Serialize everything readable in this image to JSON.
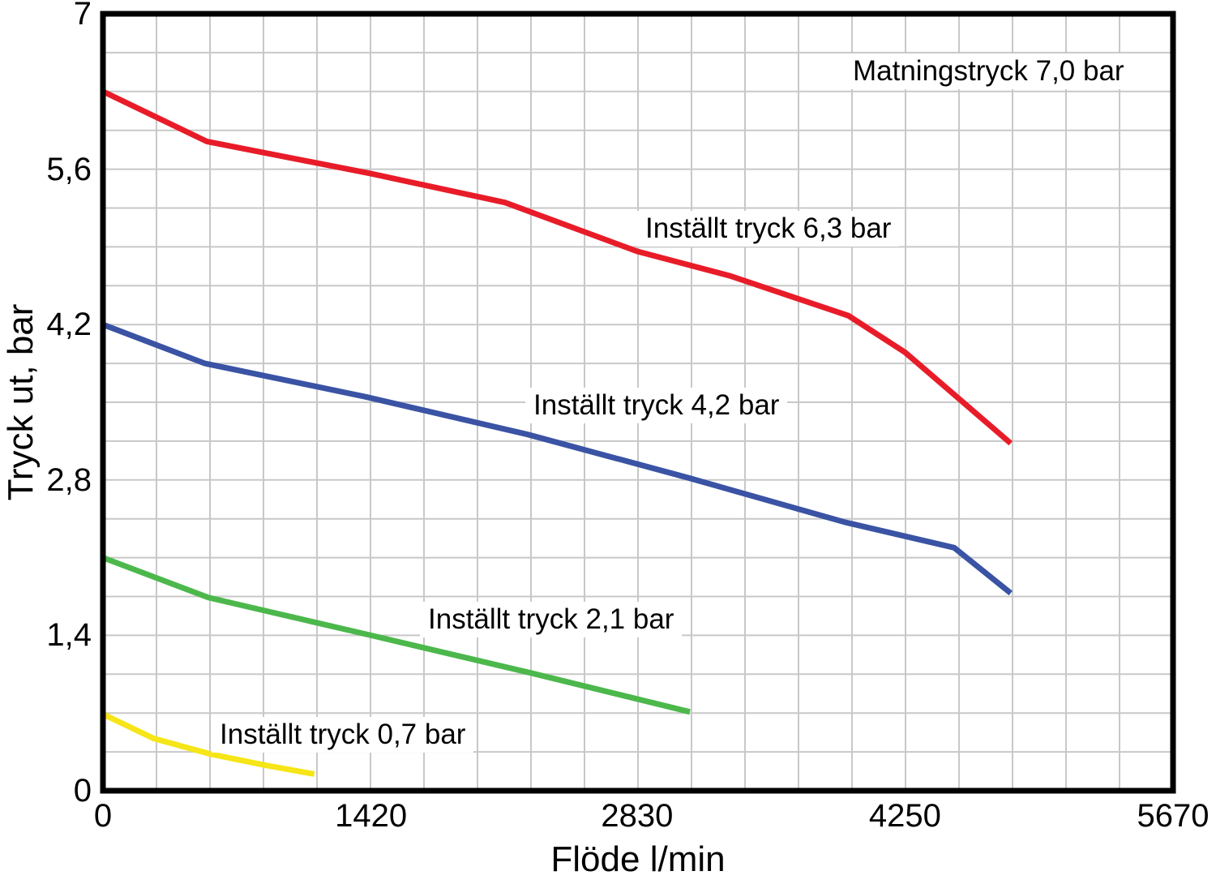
{
  "chart_data": {
    "type": "line",
    "title": "",
    "xlabel": "Flöde l/min",
    "ylabel": "Tryck ut, bar",
    "xlim": [
      0,
      5670
    ],
    "ylim": [
      0,
      7
    ],
    "xticks": {
      "values": [
        0,
        1420,
        2830,
        4250,
        5670
      ],
      "labels": [
        "0",
        "1420",
        "2830",
        "4250",
        "5670"
      ]
    },
    "yticks": {
      "values": [
        0,
        1.4,
        2.8,
        4.2,
        5.6,
        7
      ],
      "labels": [
        "0",
        "1,4",
        "2,8",
        "4,2",
        "5,6",
        "7"
      ]
    },
    "grid": {
      "on": true,
      "x_divisions": 20,
      "y_divisions": 20,
      "color": "#c8c8c8"
    },
    "frame_color": "#000000",
    "annotations": [
      {
        "text": "Matningstryck 7,0 bar"
      },
      {
        "text": "Inställt tryck 6,3 bar"
      },
      {
        "text": "Inställt tryck 4,2 bar"
      },
      {
        "text": "Inställt tryck 2,1 bar"
      },
      {
        "text": "Inställt tryck 0,7 bar"
      }
    ],
    "series": [
      {
        "name": "Inställt tryck 6,3 bar",
        "color": "#e81c28",
        "points": [
          [
            0,
            6.3
          ],
          [
            550,
            5.85
          ],
          [
            1420,
            5.56
          ],
          [
            2130,
            5.3
          ],
          [
            2830,
            4.86
          ],
          [
            3320,
            4.64
          ],
          [
            3950,
            4.28
          ],
          [
            4250,
            3.95
          ],
          [
            4810,
            3.13
          ]
        ]
      },
      {
        "name": "Inställt tryck 4,2 bar",
        "color": "#3a53a4",
        "points": [
          [
            0,
            4.2
          ],
          [
            540,
            3.85
          ],
          [
            1390,
            3.55
          ],
          [
            2250,
            3.21
          ],
          [
            3100,
            2.82
          ],
          [
            3930,
            2.42
          ],
          [
            4510,
            2.19
          ],
          [
            4810,
            1.78
          ]
        ]
      },
      {
        "name": "Inställt tryck 2,1 bar",
        "color": "#4cb84c",
        "points": [
          [
            0,
            2.1
          ],
          [
            560,
            1.74
          ],
          [
            1420,
            1.4
          ],
          [
            2270,
            1.06
          ],
          [
            3110,
            0.71
          ]
        ]
      },
      {
        "name": "Inställt tryck 0,7 bar",
        "color": "#f6e517",
        "points": [
          [
            0,
            0.69
          ],
          [
            270,
            0.47
          ],
          [
            570,
            0.33
          ],
          [
            860,
            0.23
          ],
          [
            1120,
            0.15
          ]
        ]
      }
    ]
  }
}
